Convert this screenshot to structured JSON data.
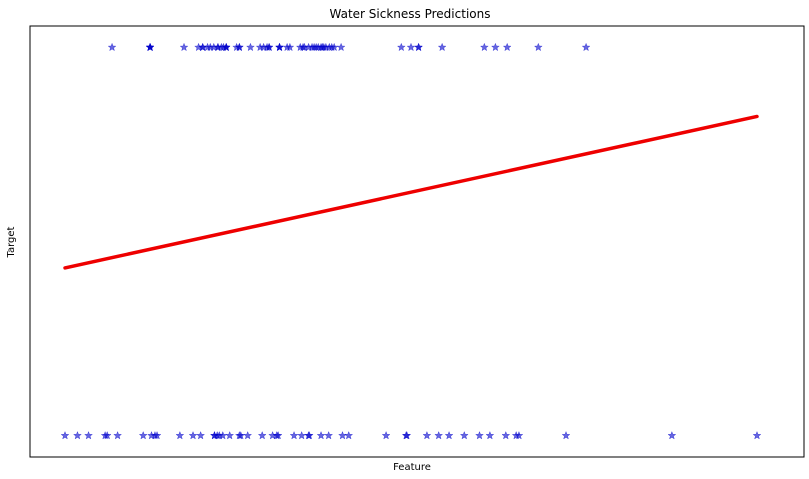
{
  "chart_data": {
    "type": "scatter",
    "title": "Water Sickness Predictions",
    "xlabel": "Feature",
    "ylabel": "Target",
    "x_ticks_visible": false,
    "y_ticks_visible": false,
    "xlim": [
      0.0,
      1.09
    ],
    "ylim": [
      -0.055,
      1.055
    ],
    "series": [
      {
        "kind": "scatter",
        "marker": "star",
        "color": "#0000cc",
        "alpha": 0.6,
        "points_y1": [
          0.068,
          0.123,
          0.123,
          0.123,
          0.123,
          0.172,
          0.193,
          0.199,
          0.199,
          0.206,
          0.21,
          0.215,
          0.221,
          0.221,
          0.226,
          0.229,
          0.233,
          0.233,
          0.233,
          0.248,
          0.252,
          0.252,
          0.268,
          0.282,
          0.287,
          0.292,
          0.295,
          0.295,
          0.31,
          0.31,
          0.31,
          0.321,
          0.325,
          0.34,
          0.344,
          0.346,
          0.352,
          0.357,
          0.36,
          0.363,
          0.366,
          0.37,
          0.372,
          0.374,
          0.377,
          0.382,
          0.3855,
          0.389,
          0.399,
          0.486,
          0.5,
          0.511,
          0.511,
          0.545,
          0.606,
          0.622,
          0.639,
          0.684,
          0.753
        ],
        "points_y0": [
          0.0,
          0.018,
          0.034,
          0.058,
          0.061,
          0.076,
          0.113,
          0.125,
          0.13,
          0.133,
          0.166,
          0.185,
          0.196,
          0.216,
          0.216,
          0.22,
          0.223,
          0.228,
          0.238,
          0.252,
          0.254,
          0.264,
          0.285,
          0.3,
          0.306,
          0.308,
          0.331,
          0.342,
          0.352,
          0.353,
          0.37,
          0.381,
          0.401,
          0.41,
          0.464,
          0.493,
          0.494,
          0.523,
          0.54,
          0.555,
          0.577,
          0.599,
          0.614,
          0.637,
          0.652,
          0.656,
          0.724,
          0.877,
          1.0
        ]
      },
      {
        "kind": "line",
        "color": "#ee0000",
        "x": [
          0.0,
          1.0
        ],
        "y": [
          0.432,
          0.822
        ]
      }
    ]
  }
}
